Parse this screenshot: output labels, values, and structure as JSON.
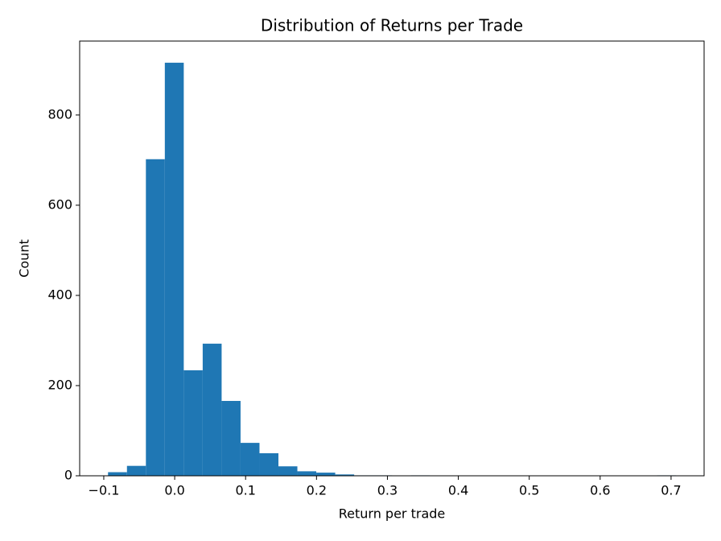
{
  "chart_data": {
    "type": "histogram",
    "title": "Distribution of Returns per Trade",
    "xlabel": "Return per trade",
    "ylabel": "Count",
    "color": "#1f77b4",
    "bins": [
      -0.094,
      -0.0673,
      -0.0406,
      -0.0139,
      0.0128,
      0.0395,
      0.0662,
      0.0929,
      0.1196,
      0.1463,
      0.173,
      0.1997,
      0.2264,
      0.2531,
      0.2798,
      0.3065,
      0.3332,
      0.3599,
      0.3866,
      0.4133,
      0.44,
      0.4667,
      0.4934,
      0.5201,
      0.5468,
      0.5735,
      0.6002,
      0.6269,
      0.6536,
      0.6803,
      0.707
    ],
    "values": [
      8,
      22,
      702,
      916,
      234,
      293,
      166,
      73,
      50,
      21,
      10,
      7,
      3,
      1,
      1,
      0,
      1,
      0,
      0,
      0,
      0,
      0,
      0,
      0,
      0,
      0,
      0,
      0,
      0,
      1
    ],
    "xlim": [
      -0.134,
      0.7466
    ],
    "ylim": [
      0,
      964
    ],
    "xticks": [
      {
        "value": -0.1,
        "label": "−0.1"
      },
      {
        "value": 0,
        "label": "0.0"
      },
      0.1,
      0.2,
      0.3,
      0.4,
      0.5,
      0.6,
      0.7
    ],
    "yticks": [
      0,
      200,
      400,
      600,
      800
    ]
  }
}
